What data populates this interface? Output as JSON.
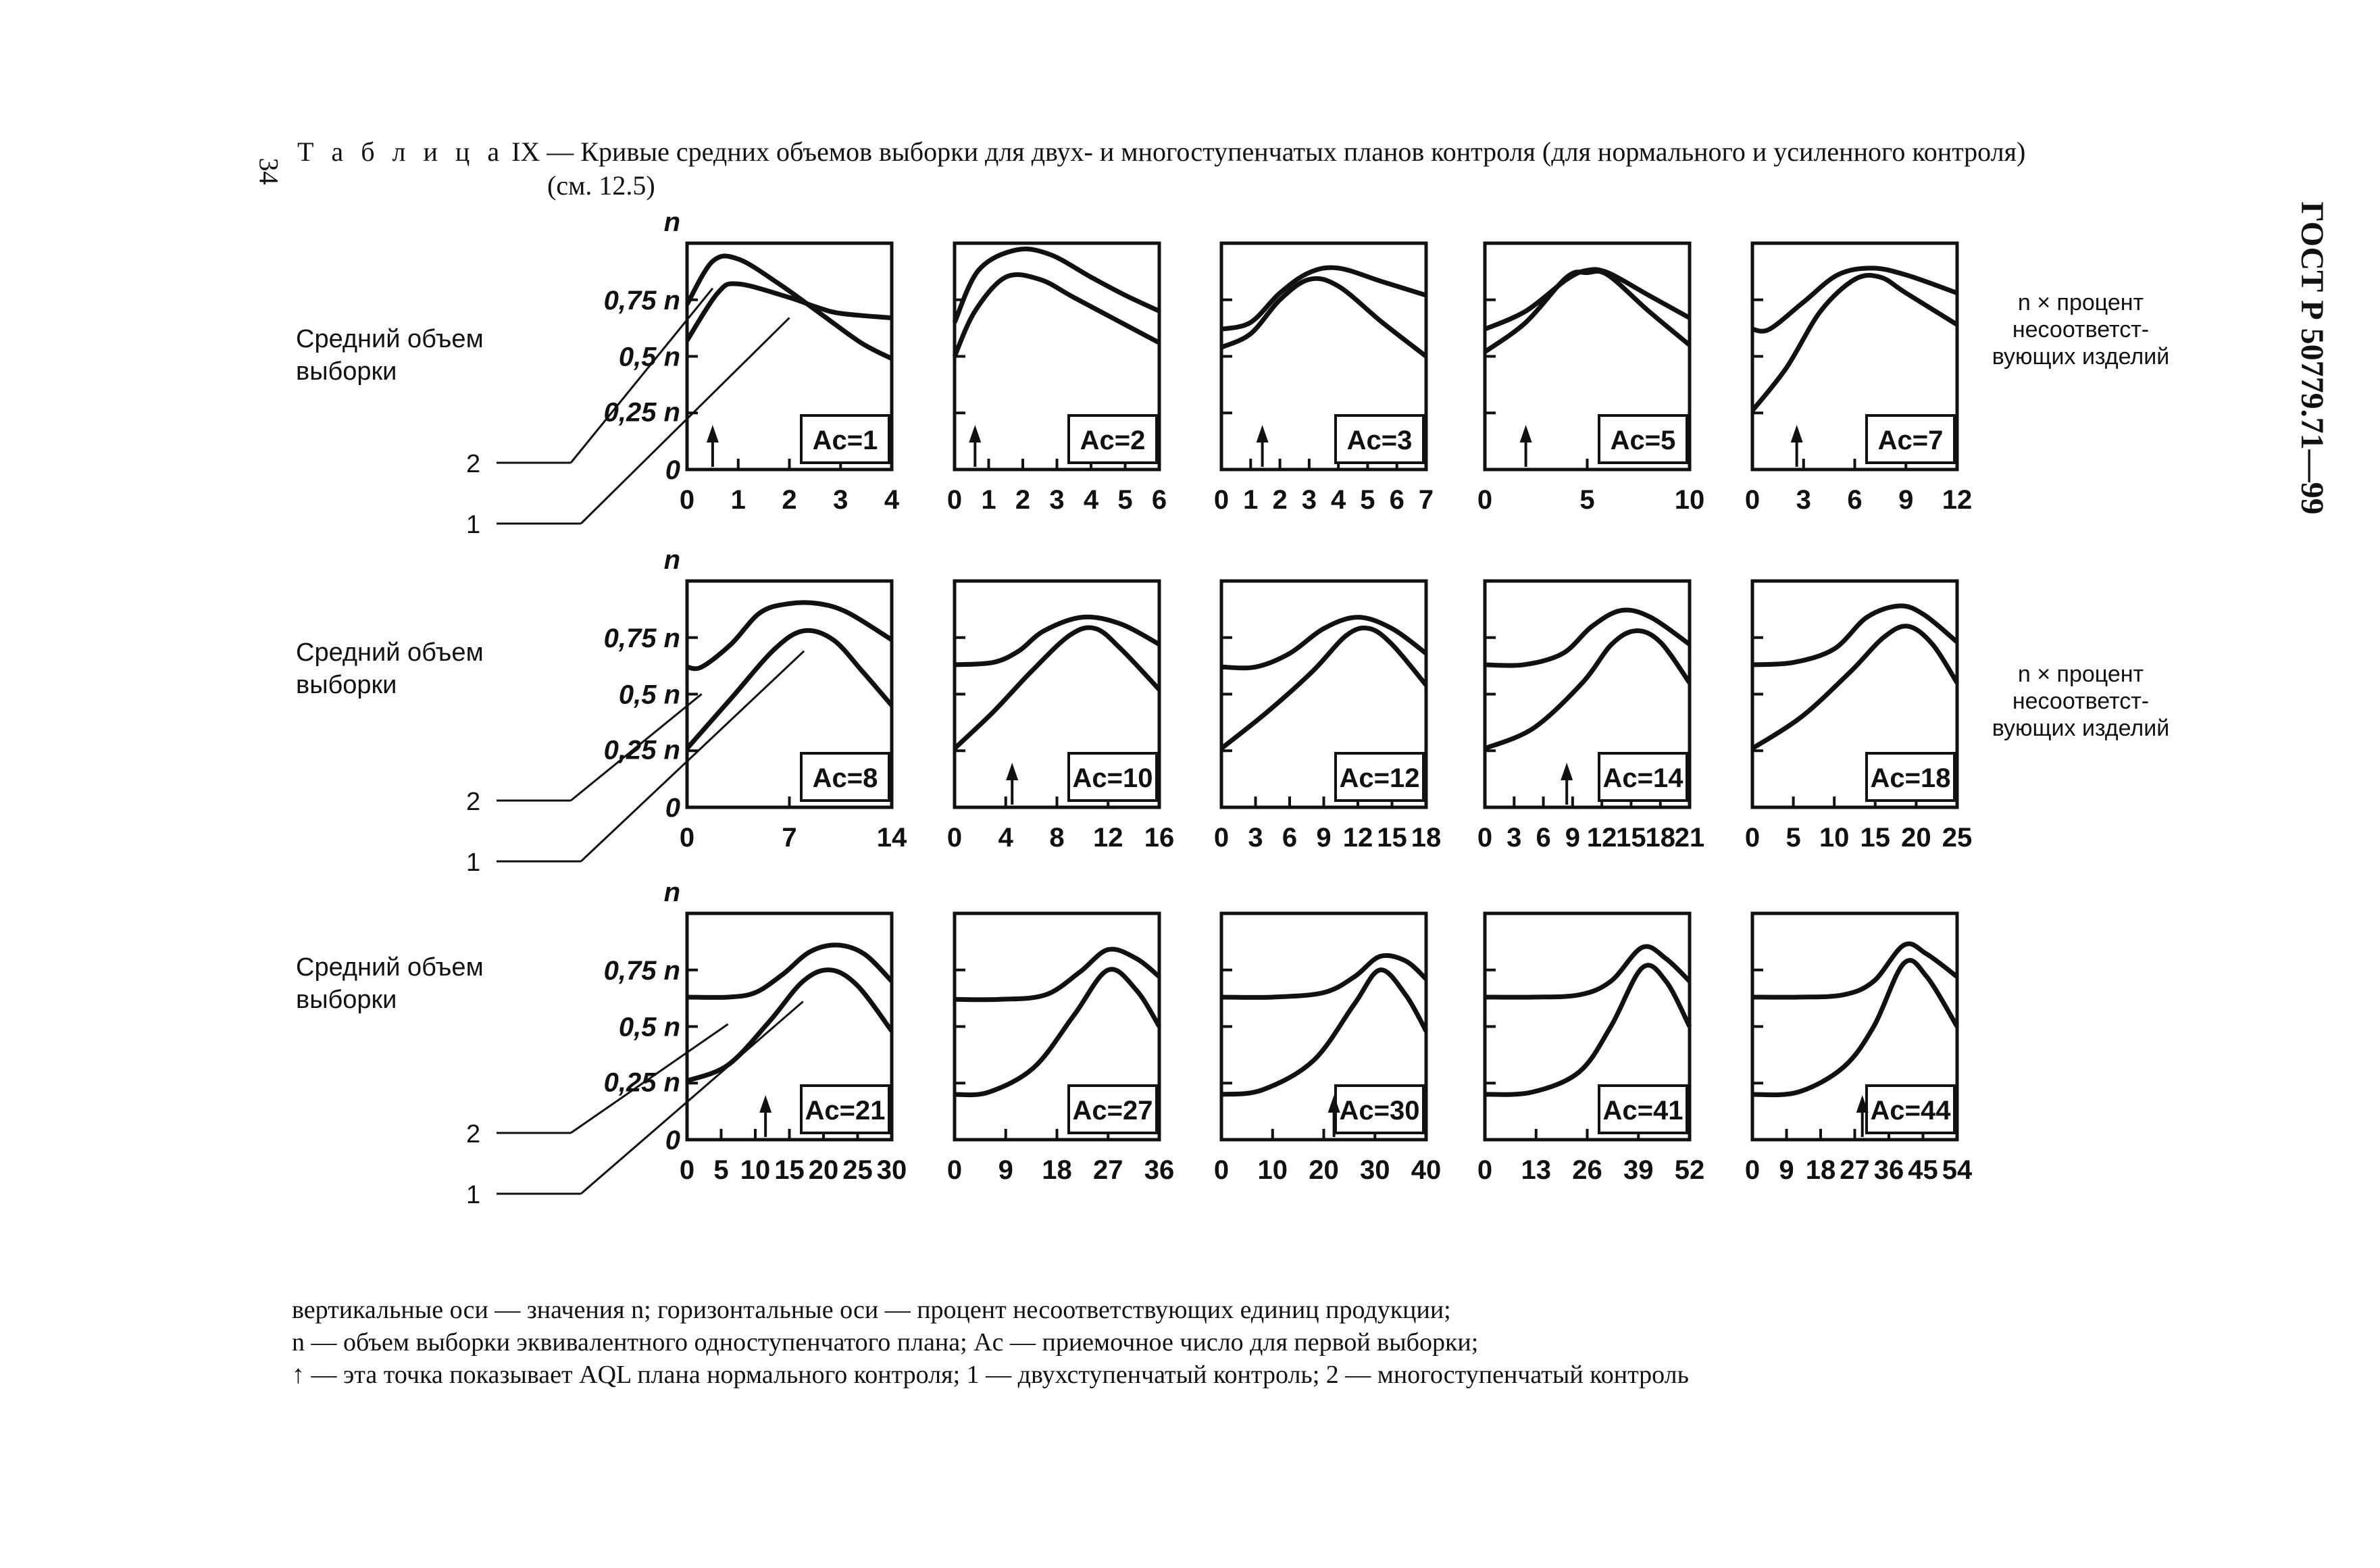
{
  "page_number": "34",
  "standard": "ГОСТ Р 50779.71—99",
  "title": {
    "label": "Т а б л и ц а",
    "text": "IX — Кривые средних объемов выборки для двух- и многоступенчатых планов контроля (для нормального и усиленного контроля)",
    "ref": "(см. 12.5)"
  },
  "row_label": "Средний объем выборки",
  "right_label": "n × процент несоответст- вующих изделий",
  "notes": [
    "вертикальные оси — значения n; горизонтальные оси — процент несоответствующих единиц продукции;",
    "n — объем выборки эквивалентного одноступенчатого плана; Ac — приемочное число для первой выборки;",
    "↑ — эта точка показывает AQL плана нормального контроля; 1 — двухступенчатый контроль; 2 — многоступенчатый контроль"
  ],
  "callouts": [
    "2",
    "1"
  ],
  "y_axis_labels": [
    "n",
    "0,75 n",
    "0,5 n",
    "0,25 n",
    "0"
  ],
  "chart_data": [
    {
      "type": "line",
      "ac_label": "Ac=1",
      "xticks": [
        "0",
        "1",
        "2",
        "3",
        "4"
      ],
      "xmax": 4,
      "aql_x": 0.5,
      "series": [
        {
          "name": "1",
          "x": [
            0,
            0.6,
            1,
            2,
            2.5,
            3,
            4
          ],
          "y": [
            0.57,
            0.78,
            0.82,
            0.76,
            0.72,
            0.69,
            0.67
          ]
        },
        {
          "name": "2",
          "x": [
            0,
            0.5,
            1,
            1.8,
            2.6,
            3.4,
            4
          ],
          "y": [
            0.73,
            0.92,
            0.93,
            0.82,
            0.69,
            0.56,
            0.49
          ]
        }
      ]
    },
    {
      "type": "line",
      "ac_label": "Ac=2",
      "xticks": [
        "0",
        "1",
        "2",
        "3",
        "4",
        "5",
        "6"
      ],
      "xmax": 6,
      "aql_x": 0.6,
      "series": [
        {
          "name": "1",
          "x": [
            0,
            0.6,
            1.5,
            2.5,
            3.5,
            5,
            6
          ],
          "y": [
            0.5,
            0.7,
            0.85,
            0.84,
            0.76,
            0.64,
            0.56
          ]
        },
        {
          "name": "2",
          "x": [
            0,
            0.7,
            1.8,
            2.8,
            4,
            5,
            6
          ],
          "y": [
            0.65,
            0.88,
            0.97,
            0.95,
            0.85,
            0.77,
            0.7
          ]
        }
      ]
    },
    {
      "type": "line",
      "ac_label": "Ac=3",
      "xticks": [
        "0",
        "1",
        "2",
        "3",
        "4",
        "5",
        "6",
        "7"
      ],
      "xmax": 7,
      "aql_x": 1.4,
      "series": [
        {
          "name": "1",
          "x": [
            0,
            1,
            2,
            3,
            4,
            5.5,
            7
          ],
          "y": [
            0.54,
            0.6,
            0.75,
            0.84,
            0.81,
            0.65,
            0.5
          ]
        },
        {
          "name": "2",
          "x": [
            0,
            1,
            2,
            3,
            4,
            5.5,
            7
          ],
          "y": [
            0.62,
            0.65,
            0.78,
            0.87,
            0.89,
            0.83,
            0.77
          ]
        }
      ]
    },
    {
      "type": "line",
      "ac_label": "Ac=5",
      "xticks": [
        "0",
        "5",
        "10"
      ],
      "xmax": 10,
      "aql_x": 2,
      "series": [
        {
          "name": "1",
          "x": [
            0,
            2,
            4,
            5,
            6,
            8,
            10
          ],
          "y": [
            0.52,
            0.65,
            0.85,
            0.87,
            0.86,
            0.7,
            0.55
          ]
        },
        {
          "name": "2",
          "x": [
            0,
            2,
            4,
            5,
            6,
            8,
            10
          ],
          "y": [
            0.62,
            0.7,
            0.84,
            0.88,
            0.87,
            0.77,
            0.67
          ]
        }
      ]
    },
    {
      "type": "line",
      "ac_label": "Ac=7",
      "xticks": [
        "0",
        "3",
        "6",
        "9",
        "12"
      ],
      "xmax": 12,
      "aql_x": 2.6,
      "series": [
        {
          "name": "1",
          "x": [
            0,
            2,
            4,
            6,
            7.5,
            9,
            12
          ],
          "y": [
            0.26,
            0.45,
            0.7,
            0.84,
            0.85,
            0.78,
            0.64
          ]
        },
        {
          "name": "2",
          "x": [
            0,
            1,
            3,
            5,
            7,
            9,
            12
          ],
          "y": [
            0.62,
            0.62,
            0.74,
            0.86,
            0.89,
            0.86,
            0.78
          ]
        }
      ]
    },
    {
      "type": "line",
      "ac_label": "Ac=8",
      "xticks": [
        "0",
        "7",
        "14"
      ],
      "xmax": 14,
      "aql_x": null,
      "series": [
        {
          "name": "1",
          "x": [
            0,
            3,
            6,
            8,
            10,
            12,
            14
          ],
          "y": [
            0.26,
            0.48,
            0.7,
            0.78,
            0.74,
            0.6,
            0.45
          ]
        },
        {
          "name": "2",
          "x": [
            0,
            1,
            3,
            5,
            7,
            9,
            11,
            14
          ],
          "y": [
            0.62,
            0.62,
            0.72,
            0.86,
            0.9,
            0.9,
            0.86,
            0.74
          ]
        }
      ]
    },
    {
      "type": "line",
      "ac_label": "Ac=10",
      "xticks": [
        "0",
        "4",
        "8",
        "12",
        "16"
      ],
      "xmax": 16,
      "aql_x": 4.5,
      "series": [
        {
          "name": "1",
          "x": [
            0,
            3,
            6,
            9,
            11,
            13,
            16
          ],
          "y": [
            0.26,
            0.42,
            0.6,
            0.76,
            0.79,
            0.7,
            0.52
          ]
        },
        {
          "name": "2",
          "x": [
            0,
            3,
            5,
            7,
            10,
            13,
            16
          ],
          "y": [
            0.63,
            0.64,
            0.69,
            0.78,
            0.84,
            0.81,
            0.72
          ]
        }
      ]
    },
    {
      "type": "line",
      "ac_label": "Ac=12",
      "xticks": [
        "0",
        "3",
        "6",
        "9",
        "12",
        "15",
        "18"
      ],
      "xmax": 18,
      "aql_x": null,
      "series": [
        {
          "name": "1",
          "x": [
            0,
            4,
            8,
            11,
            13,
            15,
            18
          ],
          "y": [
            0.26,
            0.42,
            0.6,
            0.76,
            0.79,
            0.72,
            0.54
          ]
        },
        {
          "name": "2",
          "x": [
            0,
            3,
            6,
            9,
            12,
            15,
            18
          ],
          "y": [
            0.62,
            0.62,
            0.68,
            0.79,
            0.84,
            0.79,
            0.68
          ]
        }
      ]
    },
    {
      "type": "line",
      "ac_label": "Ac=14",
      "xticks": [
        "0",
        "3",
        "6",
        "9",
        "12",
        "15",
        "18",
        "21"
      ],
      "xmax": 21,
      "aql_x": 8.4,
      "series": [
        {
          "name": "1",
          "x": [
            0,
            5,
            10,
            13,
            15.5,
            18,
            21
          ],
          "y": [
            0.26,
            0.35,
            0.55,
            0.72,
            0.78,
            0.73,
            0.55
          ]
        },
        {
          "name": "2",
          "x": [
            0,
            4,
            8,
            11,
            14,
            17,
            21
          ],
          "y": [
            0.63,
            0.63,
            0.68,
            0.8,
            0.87,
            0.84,
            0.72
          ]
        }
      ]
    },
    {
      "type": "line",
      "ac_label": "Ac=18",
      "xticks": [
        "0",
        "5",
        "10",
        "15",
        "20",
        "25"
      ],
      "xmax": 25,
      "aql_x": null,
      "series": [
        {
          "name": "1",
          "x": [
            0,
            6,
            12,
            16,
            19,
            22,
            25
          ],
          "y": [
            0.26,
            0.4,
            0.6,
            0.75,
            0.8,
            0.72,
            0.55
          ]
        },
        {
          "name": "2",
          "x": [
            0,
            5,
            10,
            14,
            18,
            21,
            25
          ],
          "y": [
            0.63,
            0.64,
            0.7,
            0.84,
            0.89,
            0.85,
            0.73
          ]
        }
      ]
    },
    {
      "type": "line",
      "ac_label": "Ac=21",
      "xticks": [
        "0",
        "5",
        "10",
        "15",
        "20",
        "25",
        "30"
      ],
      "xmax": 30,
      "aql_x": 11.5,
      "series": [
        {
          "name": "1",
          "x": [
            0,
            6,
            12,
            17,
            21,
            25,
            30
          ],
          "y": [
            0.26,
            0.33,
            0.52,
            0.7,
            0.75,
            0.68,
            0.48
          ]
        },
        {
          "name": "2",
          "x": [
            0,
            6,
            10,
            14,
            18,
            22,
            26,
            30
          ],
          "y": [
            0.63,
            0.63,
            0.65,
            0.73,
            0.83,
            0.86,
            0.82,
            0.7
          ]
        }
      ]
    },
    {
      "type": "line",
      "ac_label": "Ac=27",
      "xticks": [
        "0",
        "9",
        "18",
        "27",
        "36"
      ],
      "xmax": 36,
      "aql_x": null,
      "series": [
        {
          "name": "1",
          "x": [
            0,
            6,
            14,
            21,
            27,
            32,
            36
          ],
          "y": [
            0.2,
            0.21,
            0.32,
            0.55,
            0.75,
            0.66,
            0.5
          ]
        },
        {
          "name": "2",
          "x": [
            0,
            8,
            16,
            22,
            27,
            32,
            36
          ],
          "y": [
            0.62,
            0.62,
            0.64,
            0.74,
            0.84,
            0.8,
            0.72
          ]
        }
      ]
    },
    {
      "type": "line",
      "ac_label": "Ac=30",
      "xticks": [
        "0",
        "10",
        "20",
        "30",
        "40"
      ],
      "xmax": 40,
      "aql_x": 22,
      "series": [
        {
          "name": "1",
          "x": [
            0,
            8,
            18,
            26,
            31,
            36,
            40
          ],
          "y": [
            0.2,
            0.22,
            0.35,
            0.6,
            0.75,
            0.64,
            0.48
          ]
        },
        {
          "name": "2",
          "x": [
            0,
            10,
            20,
            26,
            31,
            36,
            40
          ],
          "y": [
            0.63,
            0.63,
            0.65,
            0.72,
            0.81,
            0.79,
            0.71
          ]
        }
      ]
    },
    {
      "type": "line",
      "ac_label": "Ac=41",
      "xticks": [
        "0",
        "13",
        "26",
        "39",
        "52"
      ],
      "xmax": 52,
      "aql_x": null,
      "series": [
        {
          "name": "1",
          "x": [
            0,
            12,
            24,
            32,
            40,
            46,
            52
          ],
          "y": [
            0.2,
            0.21,
            0.3,
            0.5,
            0.76,
            0.7,
            0.5
          ]
        },
        {
          "name": "2",
          "x": [
            0,
            12,
            24,
            32,
            40,
            46,
            52
          ],
          "y": [
            0.63,
            0.63,
            0.64,
            0.7,
            0.85,
            0.8,
            0.7
          ]
        }
      ]
    },
    {
      "type": "line",
      "ac_label": "Ac=44",
      "xticks": [
        "0",
        "9",
        "18",
        "27",
        "36",
        "45",
        "54"
      ],
      "xmax": 54,
      "aql_x": 29,
      "series": [
        {
          "name": "1",
          "x": [
            0,
            12,
            24,
            32,
            40,
            46,
            54
          ],
          "y": [
            0.2,
            0.21,
            0.32,
            0.5,
            0.78,
            0.72,
            0.5
          ]
        },
        {
          "name": "2",
          "x": [
            0,
            12,
            24,
            32,
            40,
            46,
            54
          ],
          "y": [
            0.63,
            0.63,
            0.64,
            0.7,
            0.86,
            0.82,
            0.72
          ]
        }
      ]
    }
  ]
}
